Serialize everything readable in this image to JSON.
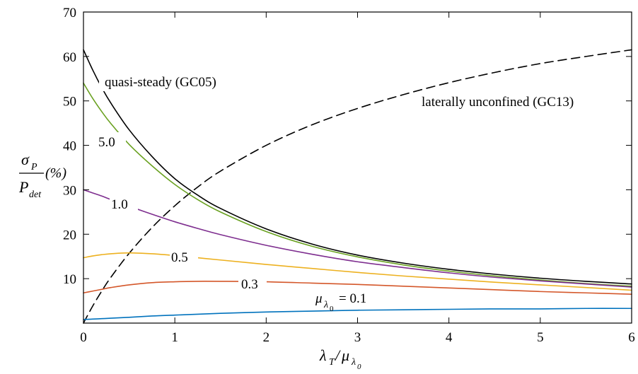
{
  "chart_data": {
    "type": "line",
    "xlim": [
      0,
      6
    ],
    "ylim": [
      0,
      70
    ],
    "grid": false,
    "x_ticks": [
      0,
      1,
      2,
      3,
      4,
      5,
      6
    ],
    "x_tick_labels": [
      "0",
      "1",
      "2",
      "3",
      "4",
      "5",
      "6"
    ],
    "y_ticks": [
      10,
      20,
      30,
      40,
      50,
      60,
      70
    ],
    "y_tick_labels": [
      "10",
      "20",
      "30",
      "40",
      "50",
      "60",
      "70"
    ],
    "xlabel": {
      "main": "λ",
      "main_sub": "T",
      "slash": "/",
      "denom": "μ",
      "denom_sub": "λ",
      "denom_subsub": "0"
    },
    "ylabel": {
      "numerator": "σ",
      "numerator_sub": "P",
      "denominator": "P",
      "denominator_sub": "det",
      "unit": "(%)"
    },
    "series": [
      {
        "key": "quasi_steady",
        "label": "quasi-steady (GC05)",
        "color": "#000000",
        "dash": "none",
        "x": [
          0,
          0.1,
          0.2,
          0.3,
          0.5,
          0.75,
          1.0,
          1.25,
          1.5,
          2.0,
          2.5,
          3.0,
          3.5,
          4.0,
          4.5,
          5.0,
          5.5,
          6.0
        ],
        "y": [
          61.5,
          57.0,
          53.0,
          49.5,
          43.5,
          37.5,
          32.5,
          28.8,
          25.8,
          21.2,
          17.8,
          15.3,
          13.5,
          12.1,
          11.0,
          10.1,
          9.4,
          8.8
        ]
      },
      {
        "key": "laterally_unconfined",
        "label": "laterally unconfined (GC13)",
        "color": "#000000",
        "dash": "12 7",
        "x": [
          0,
          0.1,
          0.2,
          0.3,
          0.5,
          0.75,
          1.0,
          1.25,
          1.5,
          2.0,
          2.5,
          3.0,
          3.5,
          4.0,
          4.5,
          5.0,
          5.5,
          6.0
        ],
        "y": [
          0.0,
          3.8,
          7.2,
          10.3,
          15.7,
          21.5,
          26.4,
          30.6,
          34.2,
          40.0,
          44.6,
          48.3,
          51.4,
          54.1,
          56.4,
          58.4,
          60.0,
          61.5
        ]
      },
      {
        "key": "mu_5.0",
        "label": "5.0",
        "color": "#6aa121",
        "dash": "none",
        "x": [
          0,
          0.1,
          0.2,
          0.3,
          0.5,
          0.75,
          1.0,
          1.25,
          1.5,
          2.0,
          2.5,
          3.0,
          3.5,
          4.0,
          4.5,
          5.0,
          5.5,
          6.0
        ],
        "y": [
          54.0,
          50.6,
          47.6,
          44.9,
          40.2,
          35.4,
          31.2,
          27.8,
          25.0,
          20.6,
          17.3,
          14.9,
          13.1,
          11.7,
          10.6,
          9.7,
          8.9,
          8.3
        ]
      },
      {
        "key": "mu_1.0",
        "label": "1.0",
        "color": "#7e2e8f",
        "dash": "none",
        "x": [
          0,
          0.1,
          0.2,
          0.3,
          0.5,
          0.75,
          1.0,
          1.25,
          1.5,
          2.0,
          2.5,
          3.0,
          3.5,
          4.0,
          4.5,
          5.0,
          5.5,
          6.0
        ],
        "y": [
          30.0,
          29.3,
          28.6,
          27.8,
          26.3,
          24.5,
          22.8,
          21.3,
          19.9,
          17.5,
          15.5,
          13.8,
          12.5,
          11.3,
          10.3,
          9.5,
          8.8,
          8.1
        ]
      },
      {
        "key": "mu_0.5",
        "label": "0.5",
        "color": "#edb120",
        "dash": "none",
        "x": [
          0,
          0.1,
          0.2,
          0.3,
          0.5,
          0.75,
          1.0,
          1.25,
          1.5,
          2.0,
          2.5,
          3.0,
          3.5,
          4.0,
          4.5,
          5.0,
          5.5,
          6.0
        ],
        "y": [
          14.7,
          15.1,
          15.4,
          15.6,
          15.8,
          15.6,
          15.2,
          14.7,
          14.2,
          13.2,
          12.3,
          11.4,
          10.6,
          9.9,
          9.2,
          8.6,
          8.0,
          7.4
        ]
      },
      {
        "key": "mu_0.3",
        "label": "0.3",
        "color": "#d4572a",
        "dash": "none",
        "x": [
          0,
          0.1,
          0.2,
          0.3,
          0.5,
          0.75,
          1.0,
          1.25,
          1.5,
          2.0,
          2.5,
          3.0,
          3.5,
          4.0,
          4.5,
          5.0,
          5.5,
          6.0
        ],
        "y": [
          6.8,
          7.2,
          7.6,
          8.0,
          8.6,
          9.1,
          9.3,
          9.4,
          9.4,
          9.3,
          9.0,
          8.7,
          8.3,
          7.9,
          7.5,
          7.1,
          6.8,
          6.5
        ]
      },
      {
        "key": "mu_0.1",
        "label": "= 0.1",
        "label_prefix": "μ",
        "label_prefix_sub": "λ",
        "label_prefix_subsub": "0",
        "color": "#0072bd",
        "dash": "none",
        "x": [
          0,
          0.1,
          0.2,
          0.3,
          0.5,
          0.75,
          1.0,
          1.25,
          1.5,
          2.0,
          2.5,
          3.0,
          3.5,
          4.0,
          4.5,
          5.0,
          5.5,
          6.0
        ],
        "y": [
          0.8,
          0.9,
          1.0,
          1.1,
          1.3,
          1.6,
          1.8,
          2.0,
          2.2,
          2.5,
          2.7,
          2.9,
          3.0,
          3.1,
          3.2,
          3.2,
          3.3,
          3.3
        ]
      }
    ]
  }
}
